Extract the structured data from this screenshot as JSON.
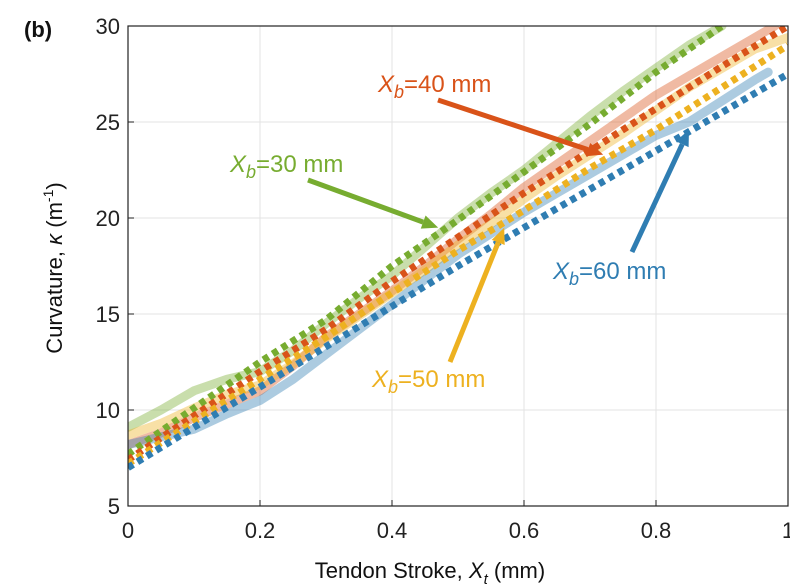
{
  "panel_label": "(b)",
  "chart_data": {
    "type": "line",
    "xlabel": "Tendon Stroke, ",
    "xlabel_symbol": "X",
    "xlabel_subscript": "t",
    "xlabel_unit": " (mm)",
    "ylabel": "Curvature, ",
    "ylabel_symbol": "κ",
    "ylabel_unit": " (m",
    "ylabel_unit_sup": "-1",
    "ylabel_unit_close": ")",
    "xlim": [
      0,
      1
    ],
    "ylim": [
      5,
      30
    ],
    "x_ticks": [
      0,
      0.2,
      0.4,
      0.6,
      0.8,
      1
    ],
    "x_tick_labels": [
      "0",
      "0.2",
      "0.4",
      "0.6",
      "0.8",
      "1"
    ],
    "y_ticks": [
      5,
      10,
      15,
      20,
      25,
      30
    ],
    "y_tick_labels": [
      "5",
      "10",
      "15",
      "20",
      "25",
      "30"
    ],
    "grid": true,
    "series": [
      {
        "key": "xb30",
        "color": "#77AC30",
        "experimental_x": [
          0,
          0.05,
          0.1,
          0.15,
          0.2,
          0.25,
          0.3,
          0.35,
          0.4,
          0.45,
          0.5,
          0.55,
          0.6,
          0.65,
          0.7,
          0.75,
          0.8,
          0.85,
          0.9
        ],
        "experimental_y": [
          9.1,
          10.0,
          11.0,
          11.6,
          12.0,
          13.1,
          14.5,
          15.8,
          17.0,
          18.5,
          20.0,
          21.3,
          22.5,
          23.9,
          25.3,
          26.6,
          27.8,
          29.0,
          30.0
        ],
        "model_x": [
          0,
          0.1,
          0.2,
          0.3,
          0.4,
          0.5,
          0.6,
          0.7,
          0.8,
          0.9
        ],
        "model_y": [
          7.7,
          10.1,
          12.5,
          14.7,
          17.5,
          19.9,
          22.4,
          24.9,
          27.6,
          30.0
        ]
      },
      {
        "key": "xb40",
        "color": "#D95319",
        "experimental_x": [
          0,
          0.05,
          0.1,
          0.15,
          0.2,
          0.25,
          0.3,
          0.35,
          0.4,
          0.45,
          0.5,
          0.55,
          0.6,
          0.65,
          0.7,
          0.75,
          0.8,
          0.85,
          0.9,
          0.95,
          0.98
        ],
        "experimental_y": [
          8.2,
          8.8,
          9.6,
          10.3,
          11.0,
          12.3,
          13.8,
          15.0,
          16.2,
          17.5,
          18.9,
          20.2,
          21.6,
          22.8,
          24.0,
          25.2,
          26.4,
          27.4,
          28.4,
          29.4,
          30.0
        ],
        "model_x": [
          0,
          0.1,
          0.2,
          0.3,
          0.4,
          0.5,
          0.6,
          0.7,
          0.8,
          0.9,
          1.0
        ],
        "model_y": [
          7.4,
          9.7,
          12.0,
          14.2,
          16.7,
          19.0,
          21.3,
          23.5,
          25.7,
          27.9,
          30.0
        ]
      },
      {
        "key": "xb50",
        "color": "#EDB120",
        "experimental_x": [
          0,
          0.05,
          0.1,
          0.15,
          0.2,
          0.25,
          0.3,
          0.35,
          0.4,
          0.45,
          0.5,
          0.55,
          0.6,
          0.65,
          0.7,
          0.75,
          0.8,
          0.85,
          0.9,
          0.95,
          1.0
        ],
        "experimental_y": [
          8.7,
          9.3,
          10.1,
          10.8,
          11.3,
          12.4,
          13.7,
          14.9,
          16.1,
          17.3,
          18.6,
          19.7,
          21.0,
          22.2,
          23.3,
          24.4,
          25.6,
          26.8,
          27.8,
          28.8,
          29.4
        ],
        "model_x": [
          0,
          0.1,
          0.2,
          0.3,
          0.4,
          0.5,
          0.6,
          0.7,
          0.8,
          0.9,
          1.0
        ],
        "model_y": [
          7.2,
          9.4,
          11.6,
          13.8,
          16.1,
          18.3,
          20.4,
          22.6,
          24.6,
          26.8,
          29.0
        ]
      },
      {
        "key": "xb60",
        "color": "#2F7DB2",
        "experimental_x": [
          0,
          0.05,
          0.1,
          0.15,
          0.2,
          0.25,
          0.3,
          0.35,
          0.4,
          0.45,
          0.5,
          0.55,
          0.6,
          0.65,
          0.7,
          0.75,
          0.8,
          0.85,
          0.9,
          0.95,
          0.97
        ],
        "experimental_y": [
          8.2,
          8.6,
          9.0,
          9.8,
          10.5,
          11.6,
          12.9,
          14.2,
          15.5,
          16.8,
          18.1,
          19.2,
          20.3,
          21.3,
          22.3,
          23.3,
          24.3,
          25.0,
          26.1,
          27.2,
          27.6
        ],
        "model_x": [
          0,
          0.1,
          0.2,
          0.3,
          0.4,
          0.5,
          0.6,
          0.7,
          0.8,
          0.9,
          1.0
        ],
        "model_y": [
          7.0,
          9.1,
          11.2,
          13.3,
          15.4,
          17.5,
          19.5,
          21.5,
          23.5,
          25.5,
          27.5
        ]
      }
    ],
    "annotations": [
      {
        "series_key": "xb30",
        "symbol": "X",
        "sub": "b",
        "rest": "=30 mm",
        "color": "#77AC30",
        "x": 0.47,
        "y": 19.5
      },
      {
        "series_key": "xb40",
        "symbol": "X",
        "sub": "b",
        "rest": "=40 mm",
        "color": "#D95319",
        "x": 0.72,
        "y": 23.3
      },
      {
        "series_key": "xb50",
        "symbol": "X",
        "sub": "b",
        "rest": "=50 mm",
        "color": "#EDB120",
        "x": 0.57,
        "y": 19.5
      },
      {
        "series_key": "xb60",
        "symbol": "X",
        "sub": "b",
        "rest": "=60 mm",
        "color": "#2F7DB2",
        "x": 0.85,
        "y": 24.6
      }
    ]
  }
}
